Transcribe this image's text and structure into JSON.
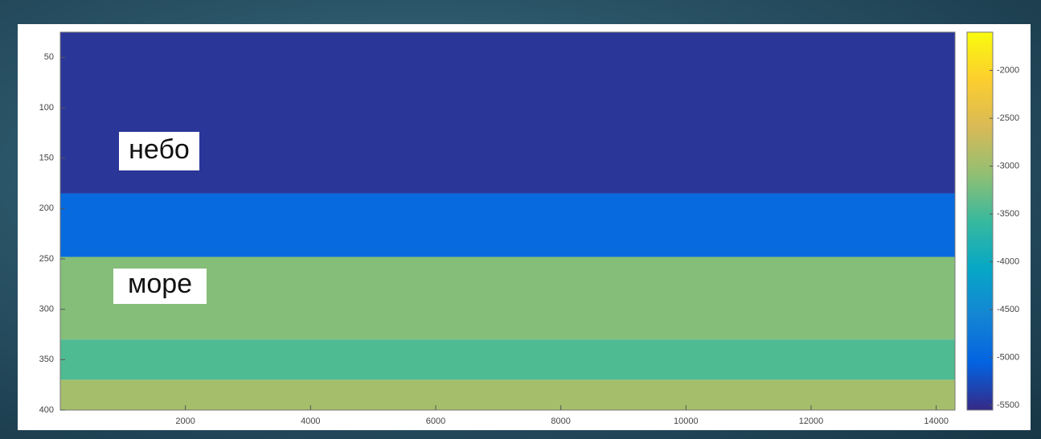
{
  "chart_data": {
    "type": "heatmap",
    "xlim": [
      0,
      14300
    ],
    "ylim": [
      25,
      400
    ],
    "y_reversed": true,
    "xticks": [
      2000,
      4000,
      6000,
      8000,
      10000,
      12000,
      14000
    ],
    "yticks": [
      50,
      100,
      150,
      200,
      250,
      300,
      350,
      400
    ],
    "clim": [
      -5550,
      -1600
    ],
    "cticks": [
      -2000,
      -2500,
      -3000,
      -3500,
      -4000,
      -4500,
      -5000,
      -5500
    ],
    "colormap": [
      "#352a87",
      "#0363e1",
      "#1485d4",
      "#06a7c6",
      "#38b99e",
      "#92bf73",
      "#d9ba56",
      "#fcce2e",
      "#f9fb0e"
    ],
    "bands": [
      {
        "y": [
          25,
          185
        ],
        "value": -5450
      },
      {
        "y": [
          185,
          248
        ],
        "value": -4950
      },
      {
        "y": [
          248,
          330
        ],
        "value": -3150
      },
      {
        "y": [
          330,
          370
        ],
        "value": -3450
      },
      {
        "y": [
          370,
          400
        ],
        "value": -2950
      }
    ],
    "annotations": [
      {
        "text": "небо"
      },
      {
        "text": "море"
      }
    ]
  }
}
